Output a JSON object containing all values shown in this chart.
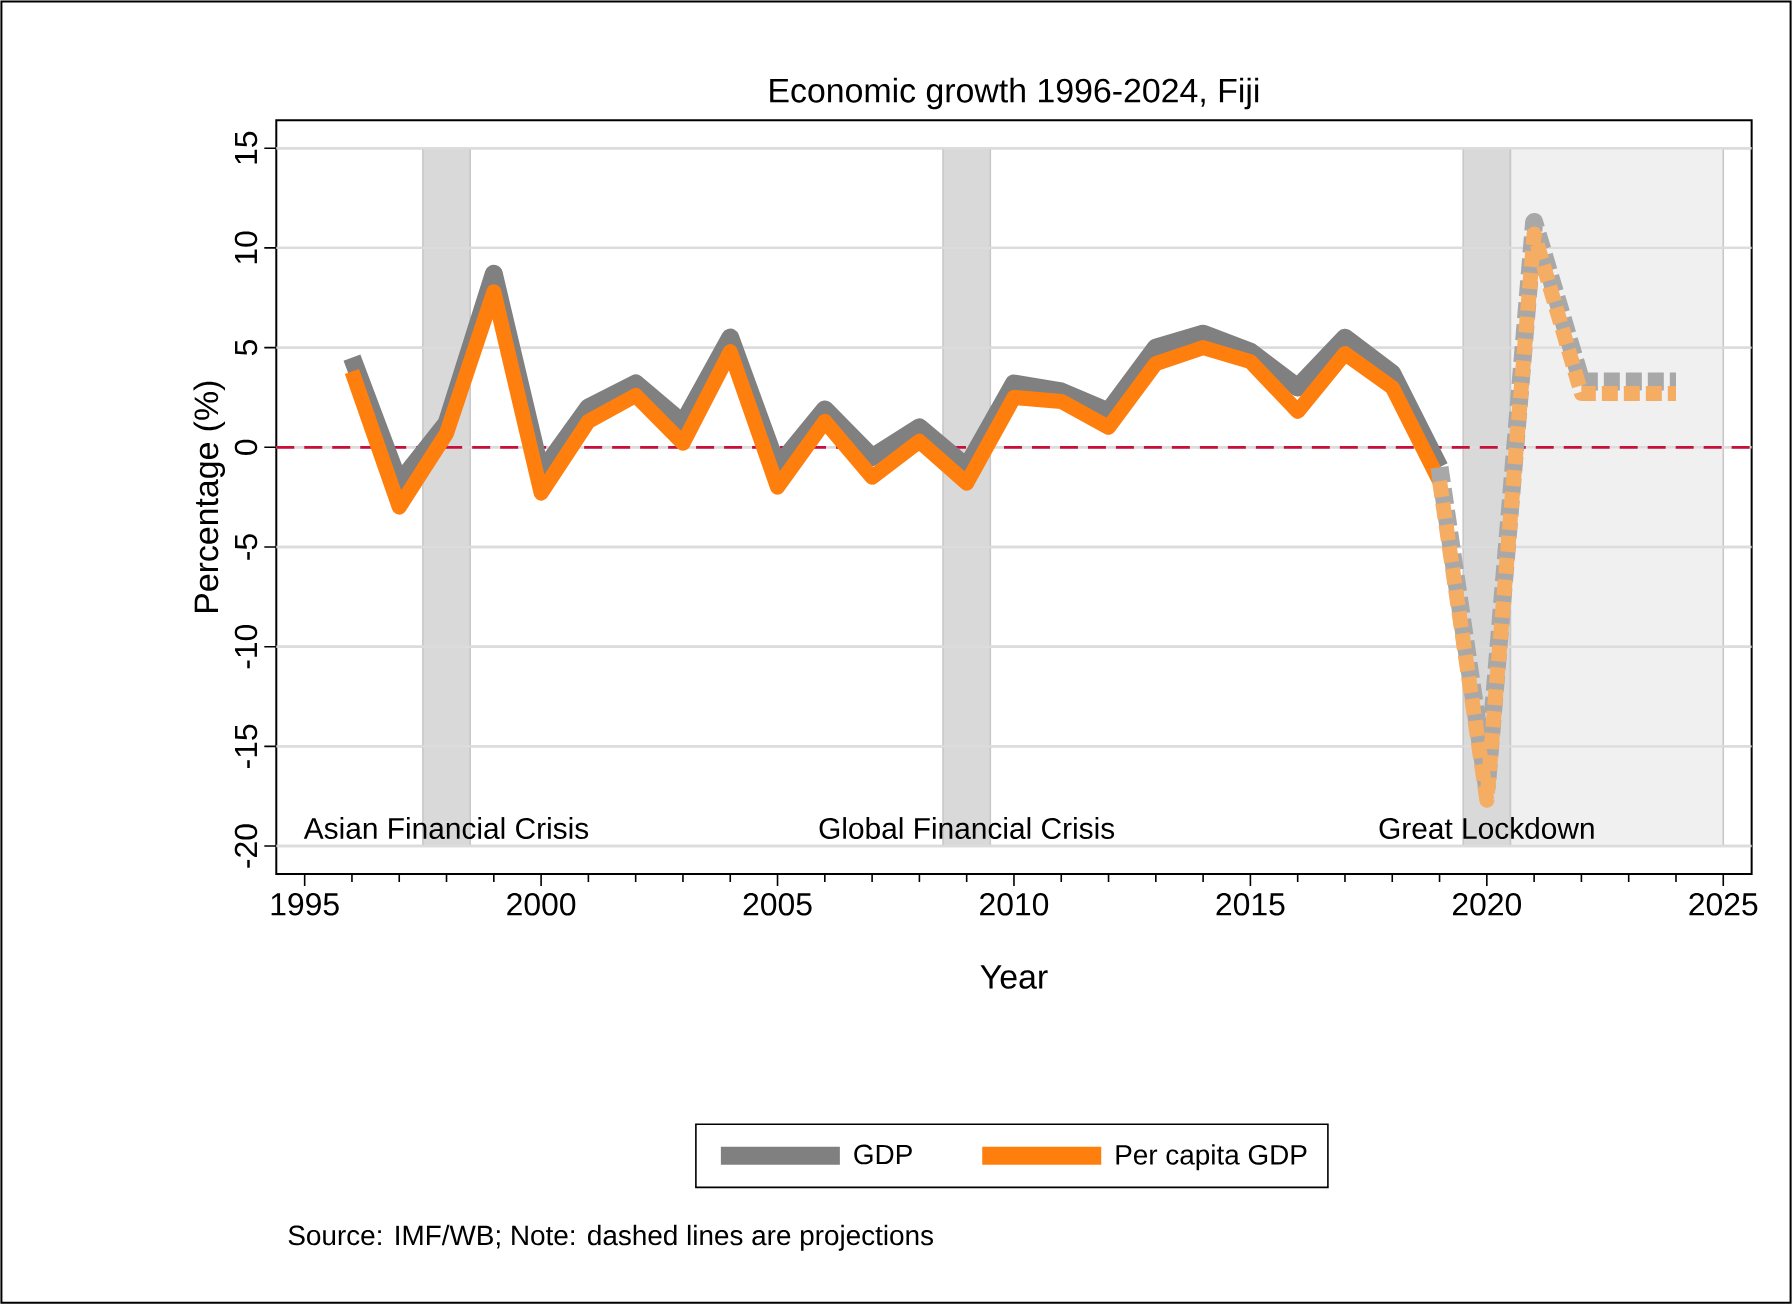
{
  "chart_data": {
    "type": "line",
    "title": "Economic growth 1996-2024, Fiji",
    "xlabel": "Year",
    "ylabel": "Percentage (%)",
    "series": [
      {
        "name": "GDP",
        "color": "#808080",
        "line_style": "solid",
        "x": [
          1996,
          1997,
          1998,
          1999,
          2000,
          2001,
          2002,
          2003,
          2004,
          2005,
          2006,
          2007,
          2008,
          2009,
          2010,
          2011,
          2012,
          2013,
          2014,
          2015,
          2016,
          2017,
          2018,
          2019
        ],
        "values": [
          4.5,
          -1.8,
          1.2,
          8.7,
          -1.3,
          2.0,
          3.2,
          1.2,
          5.5,
          -1.0,
          1.9,
          -0.5,
          1.0,
          -1.0,
          3.2,
          2.8,
          1.8,
          5.0,
          5.7,
          4.8,
          3.0,
          5.5,
          3.7,
          -1.0
        ]
      },
      {
        "name": "Per capita GDP",
        "color": "#ff7f0e",
        "line_style": "solid",
        "x": [
          1996,
          1997,
          1998,
          1999,
          2000,
          2001,
          2002,
          2003,
          2004,
          2005,
          2006,
          2007,
          2008,
          2009,
          2010,
          2011,
          2012,
          2013,
          2014,
          2015,
          2016,
          2017,
          2018,
          2019
        ],
        "values": [
          3.8,
          -3.0,
          0.7,
          7.8,
          -2.3,
          1.3,
          2.6,
          0.2,
          4.8,
          -2.0,
          1.3,
          -1.5,
          0.3,
          -1.8,
          2.5,
          2.3,
          1.0,
          4.2,
          5.0,
          4.3,
          1.8,
          4.7,
          3.0,
          -1.7
        ]
      },
      {
        "color": "#a8a8a8",
        "line_style": "dashed",
        "x": [
          2019,
          2020,
          2021,
          2022,
          2023,
          2024
        ],
        "values": [
          -1.0,
          -17.0,
          11.3,
          3.3,
          3.3,
          3.3
        ]
      },
      {
        "color": "#f5ac63",
        "line_style": "dashed",
        "x": [
          2019,
          2020,
          2021,
          2022,
          2023,
          2024
        ],
        "values": [
          -1.7,
          -17.7,
          10.7,
          2.7,
          2.7,
          2.7
        ]
      }
    ],
    "xlim": [
      1994.4,
      2025.6
    ],
    "ylim": [
      -21.4,
      16.4
    ],
    "xticks": [
      1995,
      2000,
      2005,
      2010,
      2015,
      2020,
      2025
    ],
    "yticks": [
      -20,
      -15,
      -10,
      -5,
      0,
      5,
      10,
      15
    ],
    "grid": "y",
    "legend": "bottom",
    "ref_lines": [
      {
        "axis": "y",
        "value": 0,
        "color": "#c8103c",
        "line_style": "dashed"
      }
    ],
    "bands": [
      {
        "axis": "x",
        "from": 1997.5,
        "to": 1998.5,
        "label": "Asian Financial Crisis",
        "color": "#d9d9d9"
      },
      {
        "axis": "x",
        "from": 2008.5,
        "to": 2009.5,
        "label": "Global Financial Crisis",
        "color": "#d9d9d9"
      },
      {
        "axis": "x",
        "from": 2019.5,
        "to": 2020.5,
        "label": "Great Lockdown",
        "color": "#d9d9d9"
      },
      {
        "axis": "x",
        "from": 2020.5,
        "to": 2025,
        "color": "#f0f0f0"
      }
    ],
    "annotations": [
      "Source: IMF/WB; Note: dashed lines are projections"
    ]
  }
}
